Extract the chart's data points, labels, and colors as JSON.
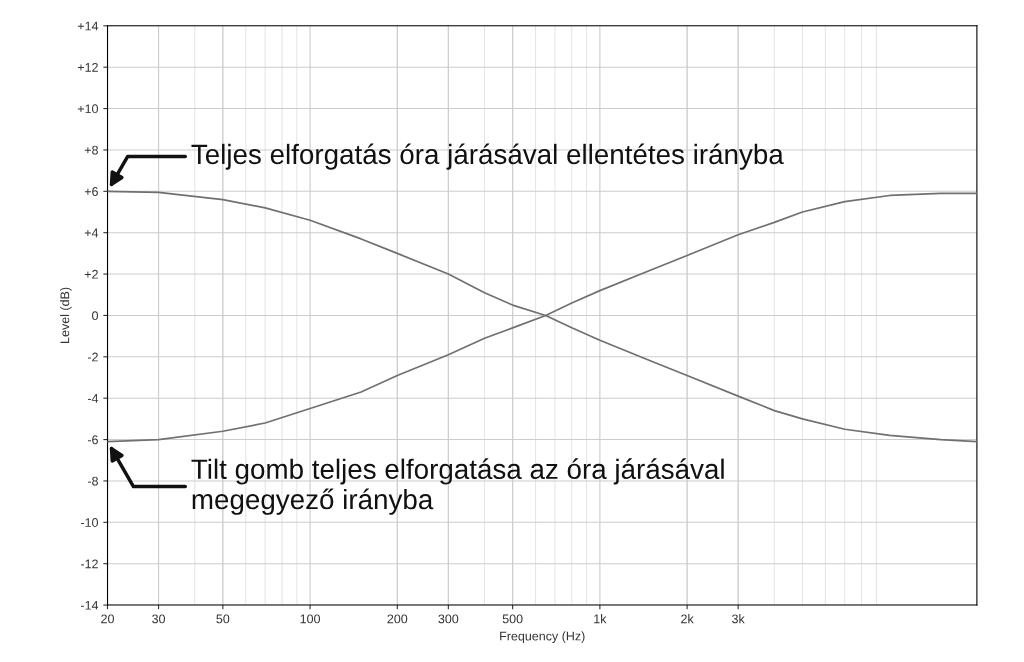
{
  "chart_data": {
    "type": "line",
    "xlabel": "Frequency (Hz)",
    "ylabel": "Level (dB)",
    "x": [
      20,
      30,
      50,
      70,
      100,
      150,
      200,
      300,
      400,
      500,
      650,
      800,
      1000,
      1500,
      2000,
      3000,
      4000,
      5000,
      7000,
      10000,
      15000,
      20000
    ],
    "series": [
      {
        "color": "#707070",
        "values": [
          6.0,
          5.95,
          5.6,
          5.2,
          4.6,
          3.7,
          3.0,
          2.0,
          1.1,
          0.5,
          0.0,
          -0.6,
          -1.2,
          -2.2,
          -2.9,
          -3.9,
          -4.6,
          -5.0,
          -5.5,
          -5.8,
          -6.0,
          -6.1
        ]
      },
      {
        "color": "#707070",
        "values": [
          -6.1,
          -6.0,
          -5.6,
          -5.2,
          -4.5,
          -3.7,
          -2.9,
          -1.9,
          -1.1,
          -0.6,
          0.0,
          0.6,
          1.2,
          2.2,
          2.9,
          3.9,
          4.5,
          5.0,
          5.5,
          5.8,
          5.9,
          5.9
        ]
      }
    ],
    "log": "x",
    "xlim": [
      20,
      20000
    ],
    "xticks": [
      20,
      30,
      50,
      100,
      200,
      300,
      500,
      {
        "value": 1000,
        "label": "1k"
      },
      {
        "value": 2000,
        "label": "2k"
      },
      {
        "value": 3000,
        "label": "3k"
      }
    ],
    "ylim": [
      -14,
      14
    ],
    "yticks": [
      {
        "value": -14,
        "label": "-14"
      },
      {
        "value": -12,
        "label": "-12"
      },
      {
        "value": -10,
        "label": "-10"
      },
      {
        "value": -8,
        "label": "-8"
      },
      {
        "value": -6,
        "label": "-6"
      },
      {
        "value": -4,
        "label": "-4"
      },
      {
        "value": -2,
        "label": "-2"
      },
      {
        "value": 0,
        "label": "0"
      },
      {
        "value": 2,
        "label": "+2"
      },
      {
        "value": 4,
        "label": "+4"
      },
      {
        "value": 6,
        "label": "+6"
      },
      {
        "value": 8,
        "label": "+8"
      },
      {
        "value": 10,
        "label": "+10"
      },
      {
        "value": 12,
        "label": "+12"
      },
      {
        "value": 14,
        "label": "+14"
      }
    ],
    "grid": true,
    "marker": "none",
    "line_style": "solid",
    "annotations": [
      {
        "text": "Teljes elforgatás óra járásával ellentétes irányba",
        "x": 20,
        "y": 6.0
      },
      {
        "text": "Tilt gomb teljes elforgatása az óra járásával\nmegegyező irányba",
        "x": 20,
        "y": -6.1
      }
    ]
  }
}
